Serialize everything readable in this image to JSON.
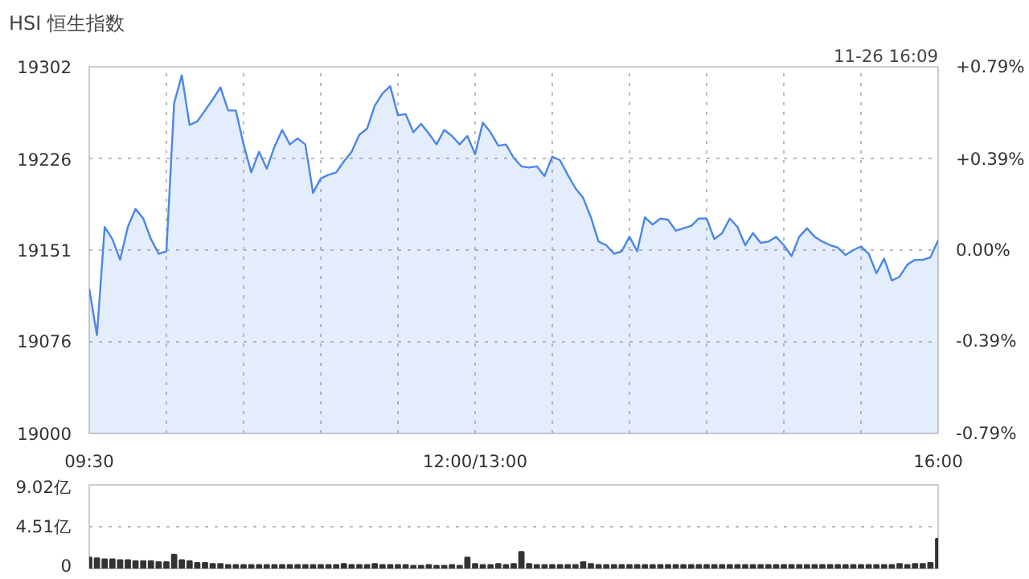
{
  "chart_data": [
    {
      "type": "area",
      "title": "HSI 恒生指数",
      "annotations": [
        "11-26 16:09"
      ],
      "categories": [
        "09:30",
        null,
        null,
        null,
        null,
        null,
        null,
        null,
        null,
        null,
        null,
        null,
        null,
        null,
        null,
        null,
        null,
        null,
        null,
        null,
        null,
        null,
        null,
        null,
        null,
        null,
        null,
        null,
        null,
        null,
        null,
        null,
        null,
        null,
        null,
        null,
        null,
        null,
        null,
        null,
        null,
        null,
        null,
        null,
        null,
        null,
        null,
        null,
        null,
        null,
        "12:00/13:00",
        null,
        null,
        null,
        null,
        null,
        null,
        null,
        null,
        null,
        null,
        null,
        null,
        null,
        null,
        null,
        null,
        null,
        null,
        null,
        null,
        null,
        null,
        null,
        null,
        null,
        null,
        null,
        null,
        null,
        null,
        null,
        null,
        null,
        null,
        null,
        null,
        null,
        null,
        null,
        null,
        null,
        null,
        null,
        null,
        null,
        null,
        null,
        null,
        null,
        null,
        null,
        null,
        null,
        null,
        null,
        null,
        null,
        null,
        null,
        "16:00"
      ],
      "series": [
        {
          "color": "#4a86e8",
          "values": [
            19119,
            19081,
            19170,
            19160,
            19143,
            19170,
            19185,
            19177,
            19160,
            19148,
            19150,
            19272,
            19295,
            19254,
            19257,
            19266,
            19275,
            19285,
            19266,
            19266,
            19238,
            19215,
            19232,
            19218,
            19236,
            19250,
            19238,
            19243,
            19238,
            19198,
            19210,
            19213,
            19215,
            19224,
            19232,
            19246,
            19251,
            19270,
            19280,
            19286,
            19262,
            19263,
            19248,
            19255,
            19247,
            19238,
            19250,
            19245,
            19238,
            19245,
            19230,
            19256,
            19248,
            19237,
            19238,
            19227,
            19220,
            19219,
            19220,
            19212,
            19228,
            19225,
            19213,
            19202,
            19194,
            19178,
            19158,
            19155,
            19148,
            19150,
            19162,
            19150,
            19178,
            19172,
            19177,
            19176,
            19167,
            19169,
            19171,
            19177,
            19177,
            19160,
            19165,
            19177,
            19170,
            19155,
            19165,
            19157,
            19158,
            19162,
            19155,
            19146,
            19162,
            19169,
            19162,
            19158,
            19155,
            19153,
            19147,
            19151,
            19154,
            19148,
            19132,
            19144,
            19126,
            19129,
            19139,
            19143,
            19143,
            19145,
            19159
          ]
        }
      ],
      "ylim": [
        19000,
        19302
      ],
      "yticks": [
        19000,
        19076,
        19151,
        19226,
        19302
      ],
      "y2lim": [
        -0.79,
        0.79
      ],
      "y2ticks": [
        {
          "value": -0.79,
          "label": "-0.79%"
        },
        {
          "value": -0.39,
          "label": "-0.39%"
        },
        {
          "value": 0,
          "label": "0.00%"
        },
        {
          "value": 0.39,
          "label": "+0.39%"
        },
        {
          "value": 0.79,
          "label": "+0.79%"
        }
      ],
      "grid": true,
      "line_style": "solid"
    },
    {
      "type": "bar",
      "color": "#333333",
      "categories": [
        null,
        null,
        null,
        null,
        null,
        null,
        null,
        null,
        null,
        null,
        null,
        null,
        null,
        null,
        null,
        null,
        null,
        null,
        null,
        null,
        null,
        null,
        null,
        null,
        null,
        null,
        null,
        null,
        null,
        null,
        null,
        null,
        null,
        null,
        null,
        null,
        null,
        null,
        null,
        null,
        null,
        null,
        null,
        null,
        null,
        null,
        null,
        null,
        null,
        null,
        null,
        null,
        null,
        null,
        null,
        null,
        null,
        null,
        null,
        null,
        null,
        null,
        null,
        null,
        null,
        null,
        null,
        null,
        null,
        null,
        null,
        null,
        null,
        null,
        null,
        null,
        null,
        null,
        null,
        null,
        null,
        null,
        null,
        null,
        null,
        null,
        null,
        null,
        null,
        null,
        null,
        null,
        null,
        null,
        null,
        null,
        null,
        null,
        null,
        null,
        null,
        null,
        null,
        null,
        null,
        null,
        null,
        null,
        null,
        null,
        null
      ],
      "values": [
        1.2,
        1.1,
        1.0,
        1.0,
        0.9,
        0.9,
        0.8,
        0.8,
        0.8,
        0.7,
        0.7,
        1.5,
        0.9,
        0.8,
        0.6,
        0.6,
        0.5,
        0.5,
        0.4,
        0.4,
        0.4,
        0.4,
        0.4,
        0.4,
        0.4,
        0.4,
        0.4,
        0.4,
        0.4,
        0.4,
        0.4,
        0.4,
        0.4,
        0.5,
        0.4,
        0.4,
        0.4,
        0.5,
        0.4,
        0.4,
        0.4,
        0.4,
        0.3,
        0.3,
        0.4,
        0.3,
        0.3,
        0.4,
        0.3,
        1.2,
        0.5,
        0.4,
        0.4,
        0.5,
        0.4,
        0.5,
        1.8,
        0.5,
        0.4,
        0.4,
        0.4,
        0.4,
        0.4,
        0.4,
        0.7,
        0.5,
        0.4,
        0.4,
        0.4,
        0.4,
        0.4,
        0.4,
        0.4,
        0.4,
        0.4,
        0.4,
        0.4,
        0.4,
        0.4,
        0.4,
        0.4,
        0.4,
        0.4,
        0.4,
        0.4,
        0.4,
        0.4,
        0.4,
        0.4,
        0.4,
        0.4,
        0.4,
        0.4,
        0.4,
        0.4,
        0.4,
        0.4,
        0.4,
        0.4,
        0.4,
        0.4,
        0.4,
        0.4,
        0.4,
        0.4,
        0.5,
        0.4,
        0.5,
        0.5,
        0.6,
        3.2
      ],
      "ylim": [
        0,
        9.02
      ],
      "yticks": [
        0,
        {
          "value": 4.51,
          "label": "4.51亿"
        },
        {
          "value": 9.02,
          "label": "9.02亿"
        }
      ],
      "tick_labels": "y",
      "grid": "y"
    }
  ]
}
